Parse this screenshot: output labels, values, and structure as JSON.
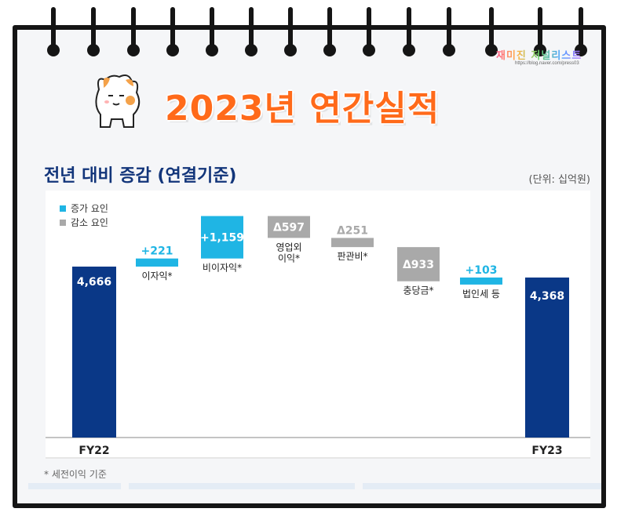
{
  "watermark": {
    "text": "재미진 저널리스트",
    "url": "https://blog.naver.com/press03"
  },
  "headline": "2023년 연간실적",
  "chart_header": {
    "title": "전년 대비 증감 (연결기준)",
    "unit": "(단위: 십억원)"
  },
  "footnote": "* 세전이익 기준",
  "colors": {
    "total": "#0a3887",
    "increase": "#1fb5e4",
    "decrease": "#a9a9a9",
    "headline": "#ff6a1a",
    "title": "#12357a"
  },
  "chart_data": {
    "type": "bar",
    "subtype": "waterfall",
    "title": "전년 대비 증감 (연결기준)",
    "unit_label": "(단위: 십억원)",
    "legend": [
      {
        "name": "증가 요인",
        "kind": "increase"
      },
      {
        "name": "감소 요인",
        "kind": "decrease"
      }
    ],
    "legend_position": "top-left",
    "grid": false,
    "start": {
      "label": "FY22",
      "value": 4666,
      "value_label": "4,666"
    },
    "steps": [
      {
        "label": [
          "이자익*"
        ],
        "delta": 221,
        "value_label": "+221",
        "kind": "increase"
      },
      {
        "label": [
          "비이자익*"
        ],
        "delta": 1159,
        "value_label": "+1,159",
        "kind": "increase"
      },
      {
        "label": [
          "영업외",
          "이익*"
        ],
        "delta": -597,
        "value_label": "Δ597",
        "kind": "decrease"
      },
      {
        "label": [
          "판관비*"
        ],
        "delta": -251,
        "value_label": "Δ251",
        "kind": "decrease"
      },
      {
        "label": [
          "충당금*"
        ],
        "delta": -933,
        "value_label": "Δ933",
        "kind": "decrease"
      },
      {
        "label": [
          "법인세 등"
        ],
        "delta": 103,
        "value_label": "+103",
        "kind": "increase"
      }
    ],
    "end": {
      "label": "FY23",
      "value": 4368,
      "value_label": "4,368"
    }
  }
}
